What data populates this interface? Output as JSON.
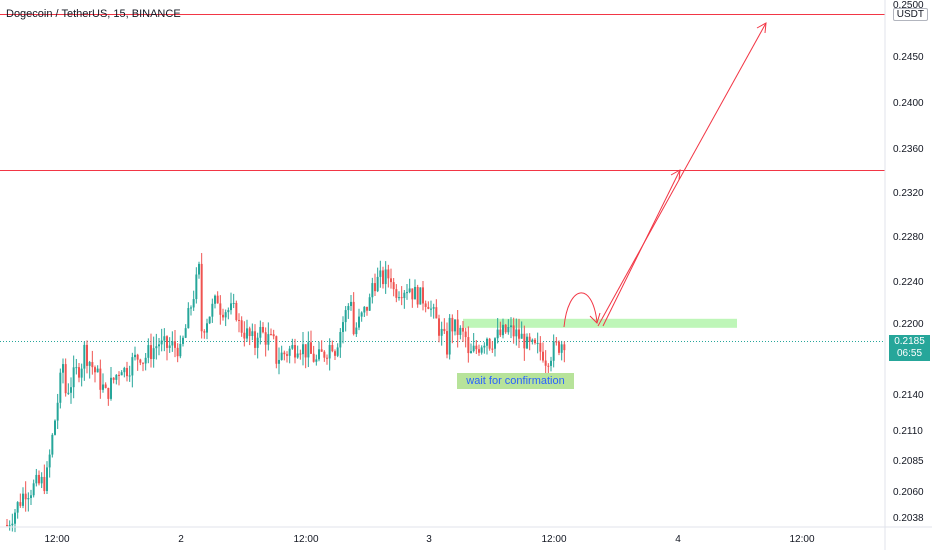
{
  "header": {
    "title": "Dogecoin / TetherUS, 15, BINANCE",
    "currency": "USDT"
  },
  "current_price": {
    "value": "0.2185",
    "countdown": "06:55"
  },
  "annotation": {
    "text": "wait for confirmation"
  },
  "colors": {
    "up": "#26a69a",
    "down": "#ef5350",
    "resistance": "#f23645",
    "zone": "#b7f5b0",
    "note_bg": "#b7e39a",
    "note_text": "#2962ff",
    "axis_text": "#131722"
  },
  "chart_data": {
    "type": "candlestick",
    "title": "Dogecoin / TetherUS, 15, BINANCE",
    "y_axis": {
      "unit": "USDT",
      "ylim": [
        0.203,
        0.25
      ],
      "ticks": [
        "0.2038",
        "0.2060",
        "0.2085",
        "0.2110",
        "0.2140",
        "0.2200",
        "0.2240",
        "0.2280",
        "0.2320",
        "0.2360",
        "0.2400",
        "0.2450",
        "0.2500"
      ]
    },
    "x_axis": {
      "ticks": [
        "12:00",
        "2",
        "12:00",
        "3",
        "12:00",
        "4",
        "12:00"
      ]
    },
    "price_path": [
      [
        0.203,
        0.2032
      ],
      [
        0.206,
        0.2062
      ],
      [
        0.2063,
        0.2068
      ],
      [
        0.214,
        0.2175
      ],
      [
        0.2178,
        0.217
      ],
      [
        0.2135,
        0.2145
      ],
      [
        0.2158,
        0.2166
      ],
      [
        0.2168,
        0.2175
      ],
      [
        0.218,
        0.2185
      ],
      [
        0.2172,
        0.218
      ],
      [
        0.219,
        0.225
      ],
      [
        0.2215,
        0.2225
      ],
      [
        0.22,
        0.221
      ],
      [
        0.2195,
        0.218
      ],
      [
        0.217,
        0.218
      ],
      [
        0.2185,
        0.218
      ],
      [
        0.2165,
        0.217
      ],
      [
        0.2175,
        0.2185
      ],
      [
        0.219,
        0.223
      ],
      [
        0.2238,
        0.2225
      ],
      [
        0.223,
        0.2245
      ],
      [
        0.223,
        0.2235
      ],
      [
        0.2215,
        0.222
      ],
      [
        0.22,
        0.2175
      ],
      [
        0.217,
        0.2185
      ],
      [
        0.2183,
        0.219
      ],
      [
        0.2195,
        0.2193
      ],
      [
        0.218,
        0.2185
      ],
      [
        0.217,
        0.2175
      ],
      [
        0.2182,
        0.2186
      ]
    ],
    "horizontal_lines": [
      {
        "kind": "resistance",
        "price": 0.249
      },
      {
        "kind": "resistance",
        "price": 0.234
      }
    ],
    "zone": {
      "price_from": 0.2197,
      "price_to": 0.2204,
      "label": ""
    },
    "current_price_line": 0.2185
  }
}
